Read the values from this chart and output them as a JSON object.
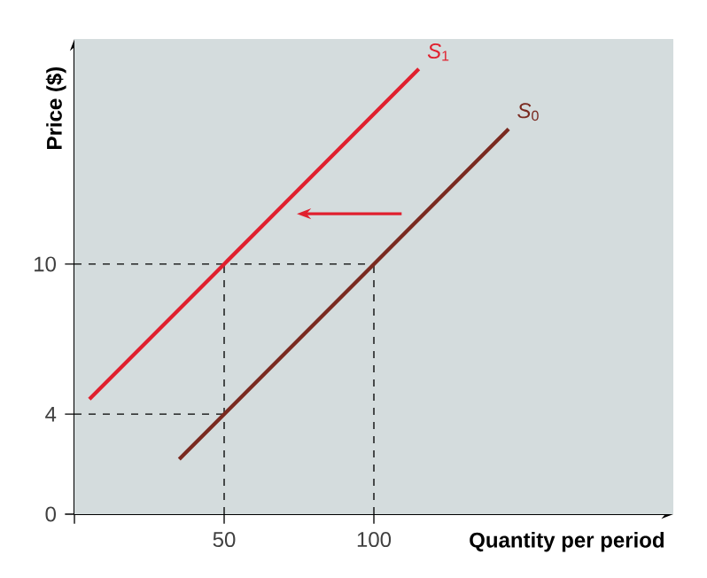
{
  "chart_data": {
    "type": "line",
    "xlabel": "Quantity per period",
    "ylabel": "Price ($)",
    "xlim": [
      0,
      200
    ],
    "ylim": [
      0,
      19
    ],
    "xticks": [
      {
        "value": 0,
        "label": null
      },
      50,
      100
    ],
    "yticks": [
      {
        "value": 0,
        "label": "0"
      },
      4,
      10
    ],
    "series": [
      {
        "name": "*S*$_{1}$",
        "color": "#e0202e",
        "x": [
          5,
          50,
          115
        ],
        "values": [
          4.6,
          10,
          17.8
        ]
      },
      {
        "name": "*S*$_{0}$",
        "color": "#7a2a20",
        "x": [
          35,
          100,
          145
        ],
        "values": [
          2.2,
          10,
          15.4
        ]
      }
    ],
    "ref_lines": [
      {
        "axis": "x",
        "value": 50,
        "line_style": "dashed"
      },
      {
        "axis": "x",
        "value": 100,
        "line_style": "dashed"
      },
      {
        "axis": "y",
        "value": 4,
        "line_style": "dashed"
      },
      {
        "axis": "y",
        "value": 10,
        "line_style": "dashed"
      }
    ],
    "legend": false,
    "marker": "none",
    "line_style": "solid",
    "grid": false
  }
}
